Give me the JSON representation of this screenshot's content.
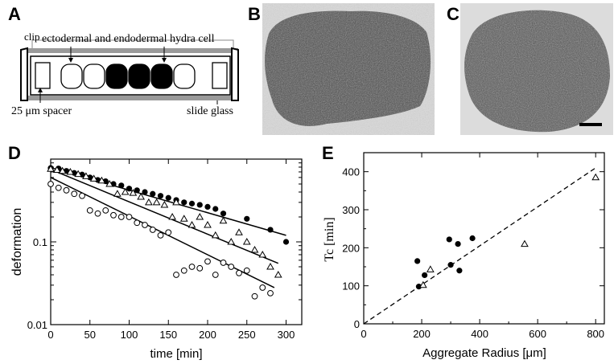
{
  "panels": {
    "a": {
      "letter": "A",
      "labels": {
        "clip": "clip",
        "cells": "ectodermal  and  endodermal hydra cell",
        "spacer": "25 μm spacer",
        "slide": "slide glass"
      },
      "cell_fills": [
        "white",
        "white",
        "black",
        "black",
        "black",
        "white"
      ]
    },
    "b": {
      "letter": "B"
    },
    "c": {
      "letter": "C"
    },
    "d": {
      "letter": "D",
      "chart_data": {
        "type": "scatter",
        "xlabel": "time [min]",
        "ylabel": "deformation",
        "xlim": [
          0,
          320
        ],
        "ylim": [
          0.01,
          1
        ],
        "yscale": "log",
        "xticks": [
          0,
          50,
          100,
          150,
          200,
          250,
          300
        ],
        "yticks": [
          {
            "value": 0.01,
            "label": "0.01"
          },
          {
            "value": 0.1,
            "label": "0.1"
          }
        ],
        "series": [
          {
            "marker": "filled-circle",
            "x": [
              0,
              10,
              20,
              30,
              40,
              50,
              60,
              70,
              80,
              90,
              100,
              110,
              120,
              130,
              140,
              150,
              160,
              170,
              180,
              190,
              200,
              210,
              220,
              250,
              280,
              300
            ],
            "y": [
              0.78,
              0.77,
              0.72,
              0.68,
              0.65,
              0.6,
              0.56,
              0.54,
              0.5,
              0.48,
              0.44,
              0.42,
              0.4,
              0.38,
              0.36,
              0.34,
              0.32,
              0.3,
              0.29,
              0.28,
              0.265,
              0.25,
              0.22,
              0.19,
              0.14,
              0.1
            ],
            "fit": [
              [
                0,
                0.79
              ],
              [
                300,
                0.12
              ]
            ]
          },
          {
            "marker": "open-triangle",
            "x": [
              0,
              8,
              15,
              25,
              35,
              45,
              55,
              65,
              75,
              85,
              95,
              105,
              115,
              125,
              135,
              145,
              155,
              160,
              170,
              180,
              190,
              200,
              210,
              220,
              230,
              240,
              250,
              260,
              270,
              280,
              290
            ],
            "y": [
              0.76,
              0.74,
              0.72,
              0.7,
              0.66,
              0.62,
              0.58,
              0.55,
              0.5,
              0.38,
              0.4,
              0.39,
              0.35,
              0.3,
              0.3,
              0.28,
              0.2,
              0.3,
              0.19,
              0.16,
              0.2,
              0.16,
              0.12,
              0.18,
              0.1,
              0.13,
              0.1,
              0.08,
              0.07,
              0.05,
              0.04
            ],
            "fit": [
              [
                0,
                0.75
              ],
              [
                290,
                0.055
              ]
            ]
          },
          {
            "marker": "open-circle",
            "x": [
              0,
              10,
              20,
              30,
              40,
              50,
              60,
              70,
              80,
              90,
              100,
              110,
              120,
              130,
              140,
              150,
              160,
              170,
              180,
              190,
              200,
              210,
              220,
              230,
              240,
              250,
              260,
              270,
              280
            ],
            "y": [
              0.5,
              0.45,
              0.42,
              0.38,
              0.36,
              0.24,
              0.22,
              0.24,
              0.21,
              0.2,
              0.2,
              0.17,
              0.16,
              0.14,
              0.12,
              0.13,
              0.04,
              0.045,
              0.05,
              0.048,
              0.058,
              0.04,
              0.056,
              0.05,
              0.042,
              0.045,
              0.022,
              0.028,
              0.024
            ],
            "fit": [
              [
                0,
                0.6
              ],
              [
                285,
                0.028
              ]
            ]
          }
        ]
      }
    },
    "e": {
      "letter": "E",
      "chart_data": {
        "type": "scatter",
        "xlabel": "Aggregate Radius [μm]",
        "ylabel": "Tc [min]",
        "xlim": [
          0,
          830
        ],
        "ylim": [
          0,
          450
        ],
        "xticks": [
          0,
          200,
          400,
          600,
          800
        ],
        "yticks": [
          0,
          100,
          200,
          300,
          400
        ],
        "series": [
          {
            "marker": "filled-circle",
            "x": [
              185,
              190,
              210,
              295,
              300,
              325,
              330,
              375
            ],
            "y": [
              165,
              98,
              128,
              222,
              155,
              210,
              140,
              225
            ]
          },
          {
            "marker": "open-triangle",
            "x": [
              205,
              230,
              555,
              800
            ],
            "y": [
              102,
              143,
              210,
              385
            ]
          }
        ],
        "reference_line": {
          "style": "dashed",
          "points": [
            [
              0,
              0
            ],
            [
              800,
              410
            ]
          ]
        }
      }
    }
  }
}
